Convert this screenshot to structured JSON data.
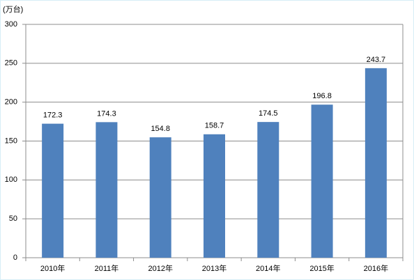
{
  "chart_data": {
    "type": "bar",
    "ylabel": "(万台)",
    "categories": [
      "2010年",
      "2011年",
      "2012年",
      "2013年",
      "2014年",
      "2015年",
      "2016年"
    ],
    "values": [
      172.3,
      174.3,
      154.8,
      158.7,
      174.5,
      196.8,
      243.7
    ],
    "color": "#4f81bd",
    "ylim": [
      0,
      300
    ],
    "yticks": [
      0,
      50,
      100,
      150,
      200,
      250,
      300
    ],
    "grid": true
  }
}
